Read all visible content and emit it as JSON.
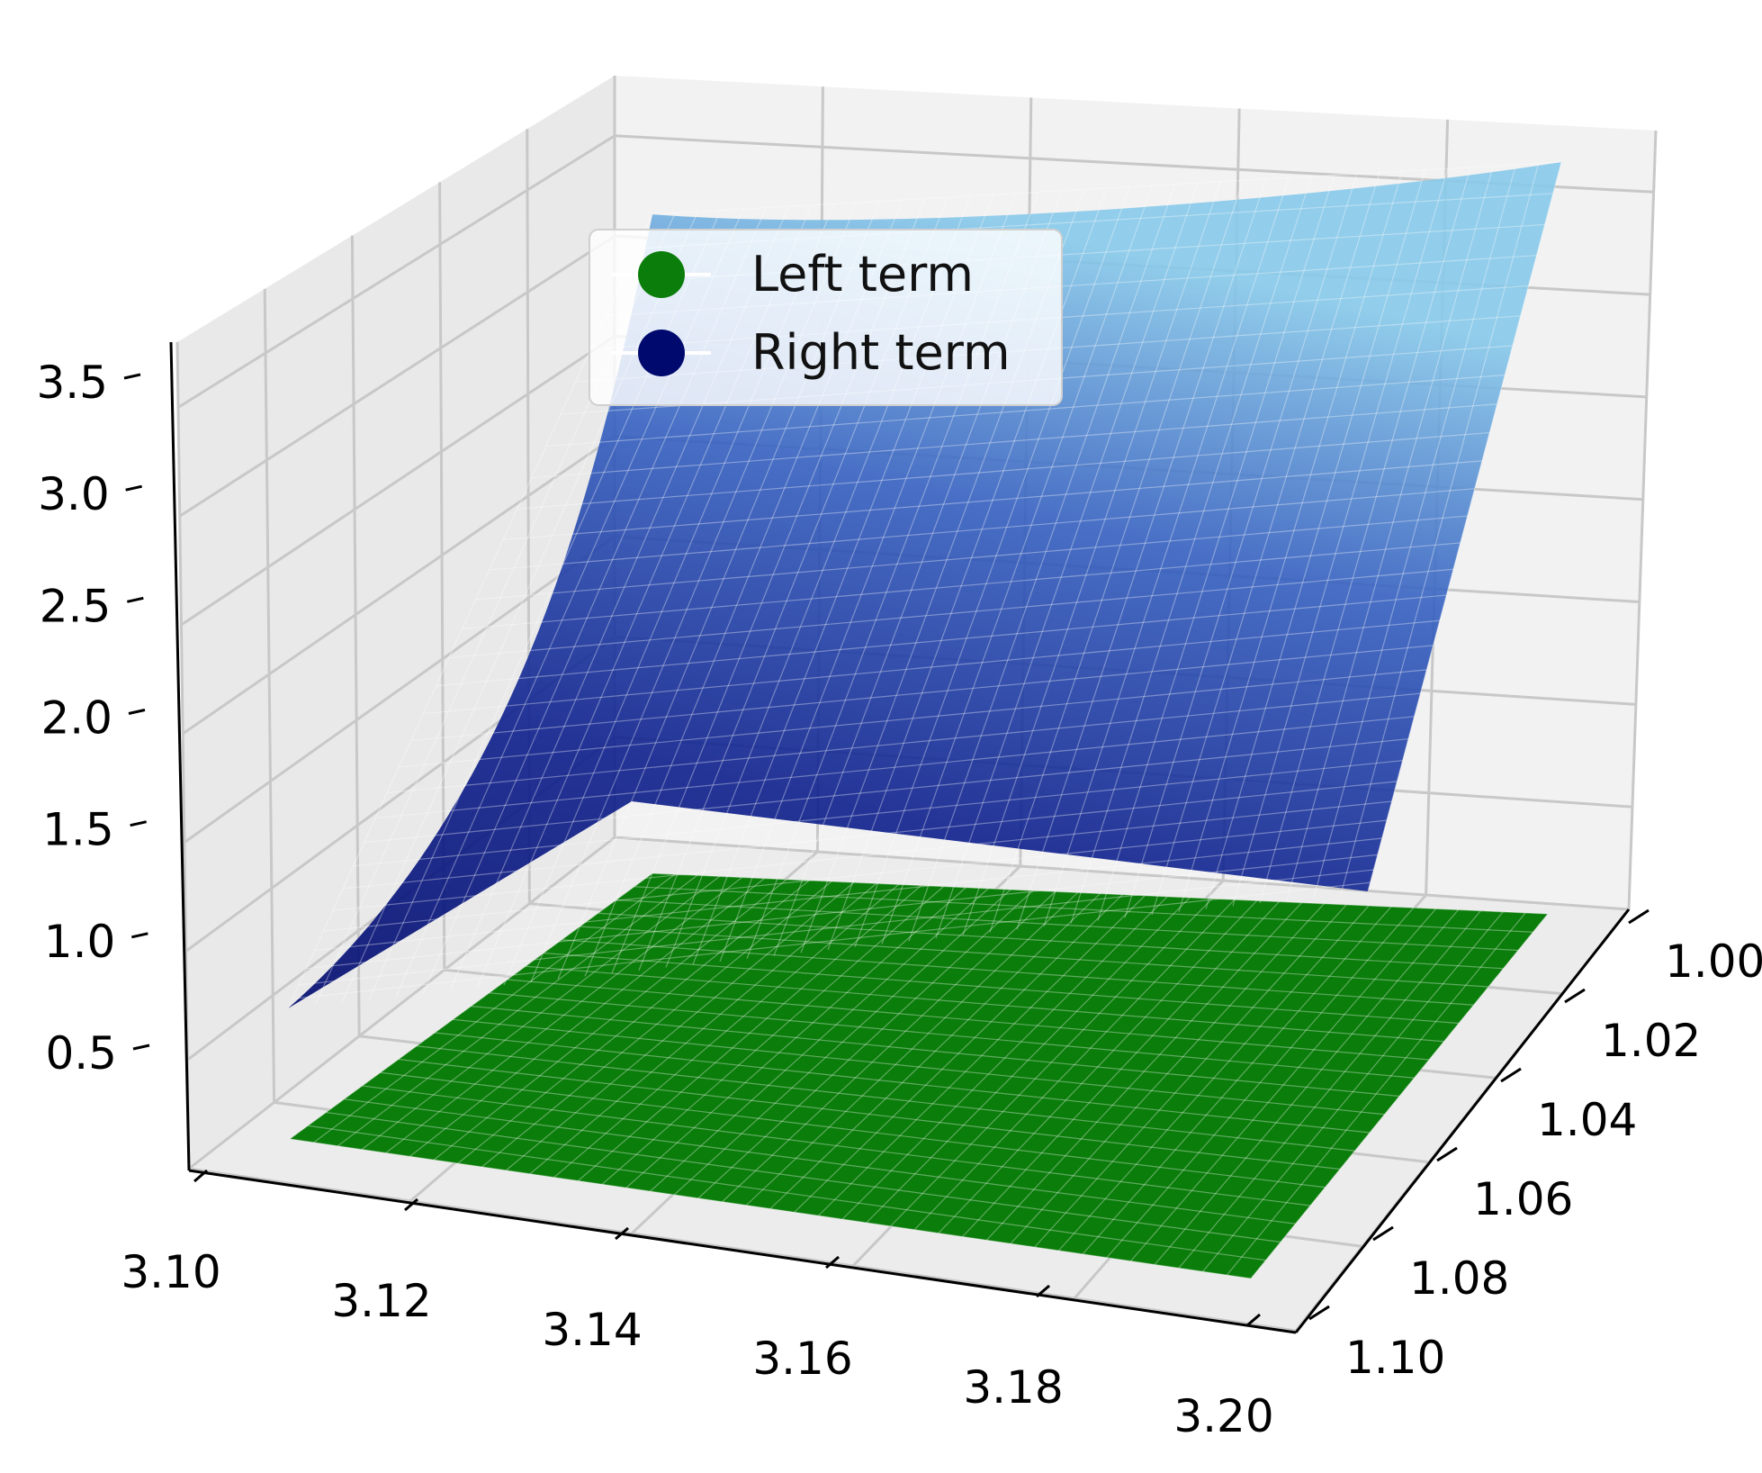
{
  "chart_data": {
    "type": "surface3d",
    "x_axis": {
      "ticks": [
        "3.10",
        "3.12",
        "3.14",
        "3.16",
        "3.18",
        "3.20"
      ],
      "range": [
        3.1,
        3.2
      ]
    },
    "y_axis": {
      "ticks": [
        "1.00",
        "1.02",
        "1.04",
        "1.06",
        "1.08",
        "1.10"
      ],
      "range": [
        1.0,
        1.1
      ]
    },
    "z_axis": {
      "ticks": [
        "0.5",
        "1.0",
        "1.5",
        "2.0",
        "2.5",
        "3.0",
        "3.5"
      ],
      "range": [
        0.0,
        3.7
      ]
    },
    "grid": true,
    "legend_position": "top-left",
    "series": [
      {
        "name": "Left term",
        "color": "#0b7d0b",
        "surface": "flat",
        "z_value": 0.2,
        "x_range": [
          3.1,
          3.2
        ],
        "y_range": [
          1.0,
          1.1
        ]
      },
      {
        "name": "Right term",
        "colormap": [
          "#000a6e",
          "#0d1f8c",
          "#3560c0",
          "#87c9ea"
        ],
        "surface": "increasing",
        "z_corners": {
          "x3.10_y1.10": 1.0,
          "x3.20_y1.10": 1.05,
          "x3.10_y1.00": 3.0,
          "x3.20_y1.00": 3.7
        },
        "x_range": [
          3.1,
          3.2
        ],
        "y_range": [
          1.0,
          1.1
        ]
      }
    ]
  },
  "legend": {
    "items": [
      {
        "label": "Left term",
        "color": "#0b7d0b"
      },
      {
        "label": "Right term",
        "color": "#000a6e"
      }
    ]
  }
}
